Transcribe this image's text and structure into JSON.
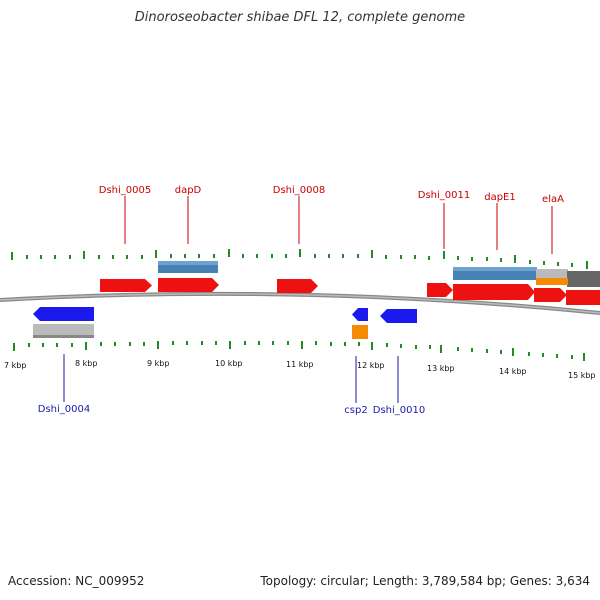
{
  "title": "Dinoroseobacter shibae DFL 12, complete genome",
  "footer": {
    "accession": "Accession: NC_009952",
    "summary": "Topology: circular; Length: 3,789,584 bp; Genes: 3,634"
  },
  "colors": {
    "plus_strand_gene": "#ee1111",
    "minus_strand_gene": "#1a1aee",
    "cds_bar": "#4682b4",
    "gray_feature": "#bbbbbb",
    "orange_feature": "#f58a07",
    "tick": "#228b22",
    "label_top": "#cc0000",
    "label_bottom": "#1a1aa6"
  },
  "scale_ticks": [
    "7 kbp",
    "8 kbp",
    "9 kbp",
    "10 kbp",
    "11 kbp",
    "12 kbp",
    "13 kbp",
    "14 kbp",
    "15 kbp"
  ],
  "gene_labels_top": [
    "Dshi_0005",
    "dapD",
    "Dshi_0008",
    "Dshi_0011",
    "dapE1",
    "elaA"
  ],
  "gene_labels_bottom": [
    "Dshi_0004",
    "csp2",
    "Dshi_0010"
  ]
}
